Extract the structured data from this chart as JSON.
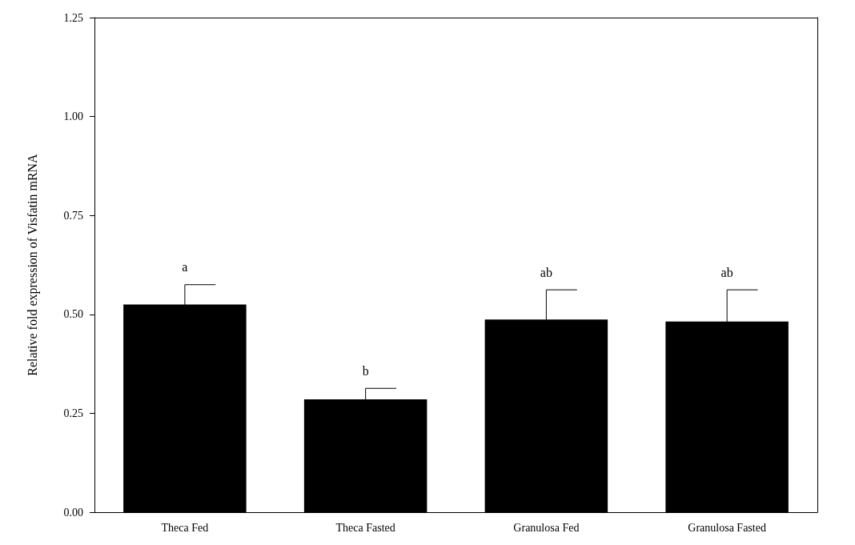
{
  "chart_data": {
    "type": "bar",
    "ylabel": "Relative fold expression of Visfatin mRNA",
    "categories": [
      "Theca Fed",
      "Theca Fasted",
      "Granulosa Fed",
      "Granulosa Fasted"
    ],
    "values": [
      0.525,
      0.285,
      0.487,
      0.482
    ],
    "errors": [
      0.05,
      0.028,
      0.075,
      0.08
    ],
    "color": "#000000",
    "ylim": [
      0,
      1.25
    ],
    "yticks": [
      {
        "value": 0,
        "label": "0.00"
      },
      {
        "value": 0.25,
        "label": "0.25"
      },
      {
        "value": 0.5,
        "label": "0.50"
      },
      {
        "value": 0.75,
        "label": "0.75"
      },
      {
        "value": 1,
        "label": "1.00"
      },
      {
        "value": 1.25,
        "label": "1.25"
      }
    ],
    "grid": false,
    "annotations": [
      "a",
      "b",
      "ab",
      "ab"
    ]
  }
}
